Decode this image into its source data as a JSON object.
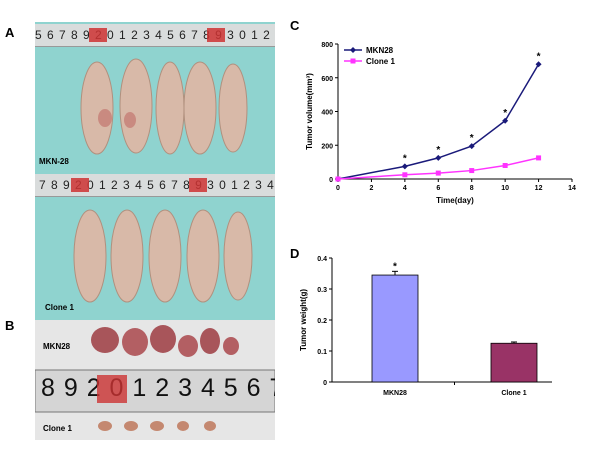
{
  "panels": {
    "a": {
      "letter": "A",
      "top_photo": {
        "group_label": "MKN-28",
        "ruler_digits": "5 6 7 8 9 2 0 1 2 3 4 5 6 7 8 9 3 0 1 2 3 4 5",
        "mice_count": 5
      },
      "bottom_photo": {
        "group_label": "Clone  1",
        "ruler_digits": "7 8 9 2 0 1 2 3 4 5 6 7 8 9 3 0 1 2 3 4 5",
        "mice_count": 5
      }
    },
    "b": {
      "letter": "B",
      "top_row_label": "MKN28",
      "bottom_row_label": "Clone 1",
      "ruler_digits": "8 9 2 0 1 2 3 4 5 6 7 8",
      "tumor_counts": [
        5,
        6
      ]
    },
    "c": {
      "letter": "C"
    },
    "d": {
      "letter": "D"
    }
  },
  "colors": {
    "mkn28": "#1a1a7a",
    "clone1": "#ff33ff",
    "bar_mkn28": "#9999ff",
    "bar_clone1": "#993366",
    "photo_bg": "#8fd3cf",
    "mouse": "#d8b9a8"
  },
  "chart_data": [
    {
      "type": "line",
      "xlabel": "Time(day)",
      "ylabel": "Tumor volume(mm³)",
      "xlim": [
        0,
        14
      ],
      "ylim": [
        0,
        800
      ],
      "xticks": [
        0,
        2,
        4,
        6,
        8,
        10,
        12,
        14
      ],
      "yticks": [
        0,
        200,
        400,
        600,
        800
      ],
      "legend_position": "top-left",
      "grid": false,
      "series": [
        {
          "name": "MKN28",
          "x": [
            0,
            4,
            6,
            8,
            10,
            12
          ],
          "values": [
            0,
            75,
            125,
            195,
            345,
            680
          ],
          "marker": "diamond"
        },
        {
          "name": "Clone 1",
          "x": [
            0,
            4,
            6,
            8,
            10,
            12
          ],
          "values": [
            0,
            25,
            35,
            50,
            80,
            125
          ],
          "marker": "square"
        }
      ],
      "significance": {
        "symbol": "*",
        "x": [
          4,
          6,
          8,
          10,
          12
        ]
      }
    },
    {
      "type": "bar",
      "categories": [
        "MKN28",
        "Clone  1"
      ],
      "values": [
        0.345,
        0.125
      ],
      "errors": [
        0.012,
        0.004
      ],
      "ylabel": "Tumor weight(g)",
      "ylim": [
        0,
        0.4
      ],
      "yticks": [
        0,
        0.1,
        0.2,
        0.3,
        0.4
      ],
      "significance": {
        "symbol": "*",
        "category": "MKN28"
      }
    }
  ]
}
